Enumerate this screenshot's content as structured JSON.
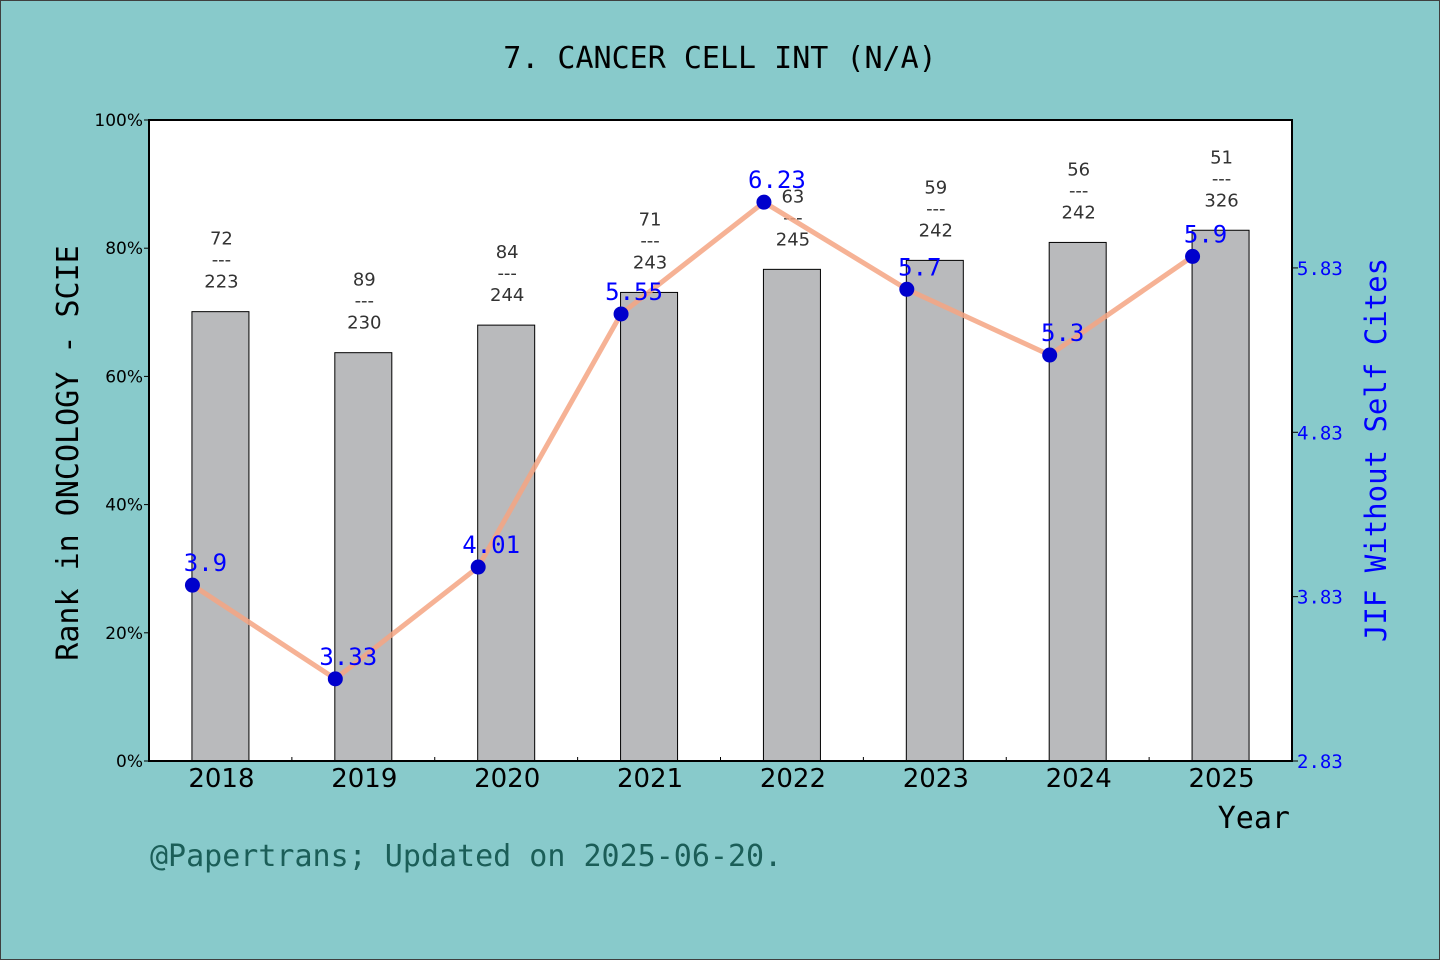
{
  "chart_data": {
    "type": "bar",
    "title": "7. CANCER CELL INT (N/A)",
    "xlabel": "Year",
    "ylabel": "Rank in ONCOLOGY - SCIE",
    "y2label": "JIF Without Self Cites",
    "footer": "@Papertrans; Updated on 2025-06-20.",
    "categories": [
      "2018",
      "2019",
      "2020",
      "2021",
      "2022",
      "2023",
      "2024",
      "2025"
    ],
    "ylim": [
      0,
      100
    ],
    "yticks": [
      "0%",
      "20%",
      "40%",
      "60%",
      "80%",
      "100%"
    ],
    "y2lim": [
      2.83,
      6.73
    ],
    "y2ticks": [
      "2.83",
      "3.83",
      "4.83",
      "5.83"
    ],
    "series": [
      {
        "kind": "bar",
        "values": [
          70.1,
          63.7,
          68.0,
          73.1,
          76.7,
          78.1,
          80.9,
          82.8
        ],
        "rank_labels": [
          {
            "rank": "72",
            "total": "223"
          },
          {
            "rank": "89",
            "total": "230"
          },
          {
            "rank": "84",
            "total": "244"
          },
          {
            "rank": "71",
            "total": "243"
          },
          {
            "rank": "63",
            "total": "245"
          },
          {
            "rank": "59",
            "total": "242"
          },
          {
            "rank": "56",
            "total": "242"
          },
          {
            "rank": "51",
            "total": "326"
          }
        ],
        "separator": "---"
      },
      {
        "kind": "line",
        "values": [
          3.9,
          3.33,
          4.01,
          5.55,
          6.23,
          5.7,
          5.3,
          5.9
        ],
        "labels": [
          "3.9",
          "3.33",
          "4.01",
          "5.55",
          "6.23",
          "5.7",
          "5.3",
          "5.9"
        ]
      }
    ],
    "colors": {
      "background": "#88cacb",
      "plot": "#ffffff",
      "bar": "#b9babc",
      "line": "#f4a582",
      "point": "#0000cc",
      "jif_text": "#0000ff",
      "footer": "#1b5e58"
    },
    "grid": false,
    "legend": "none"
  }
}
